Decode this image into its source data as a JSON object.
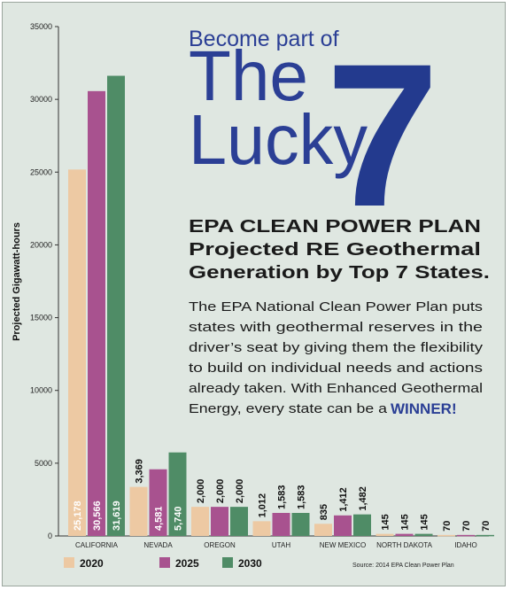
{
  "heading": {
    "line1": "Become part of",
    "line2": "The",
    "line3": "Lucky",
    "number": "7"
  },
  "subtitle": {
    "line1": "EPA CLEAN POWER PLAN",
    "line2": "Projected RE Geothermal",
    "line3": "Generation by Top 7 States."
  },
  "body_text": {
    "lines": [
      "The EPA National Clean Power Plan puts",
      "states with geothermal reserves in the",
      "driver’s seat by giving them the flexibility",
      "to build on individual needs and actions",
      "already taken. With Enhanced Geothermal",
      "Energy, every state can be a"
    ],
    "emphasis": "WINNER!"
  },
  "source": "Source: 2014 EPA Clean Power Plan",
  "colors": {
    "background": "#dfe7e1",
    "heading_blue": "#2b3f95",
    "series_2020": "#edc9a3",
    "series_2025": "#a8528f",
    "series_2030": "#4f8c66"
  },
  "chart_data": {
    "type": "bar",
    "ylabel": "Projected Gigawatt-hours",
    "ylim": [
      0,
      35000
    ],
    "yticks": [
      0,
      5000,
      10000,
      15000,
      20000,
      25000,
      30000,
      35000
    ],
    "categories": [
      "CALIFORNIA",
      "NEVADA",
      "OREGON",
      "UTAH",
      "NEW MEXICO",
      "NORTH DAKOTA",
      "IDAHO"
    ],
    "series": [
      {
        "name": "2020",
        "values": [
          25178,
          3369,
          2000,
          1012,
          835,
          145,
          70
        ]
      },
      {
        "name": "2025",
        "values": [
          30566,
          4581,
          2000,
          1583,
          1412,
          145,
          70
        ]
      },
      {
        "name": "2030",
        "values": [
          31619,
          5740,
          2000,
          1583,
          1482,
          145,
          70
        ]
      }
    ],
    "value_labels": [
      [
        "25,178",
        "3,369",
        "2,000",
        "1,012",
        "835",
        "145",
        "70"
      ],
      [
        "30,566",
        "4,581",
        "2,000",
        "1,583",
        "1,412",
        "145",
        "70"
      ],
      [
        "31,619",
        "5,740",
        "2,000",
        "1,583",
        "1,482",
        "145",
        "70"
      ]
    ],
    "legend": [
      "2020",
      "2025",
      "2030"
    ],
    "legend_position": "bottom",
    "grid": false
  }
}
